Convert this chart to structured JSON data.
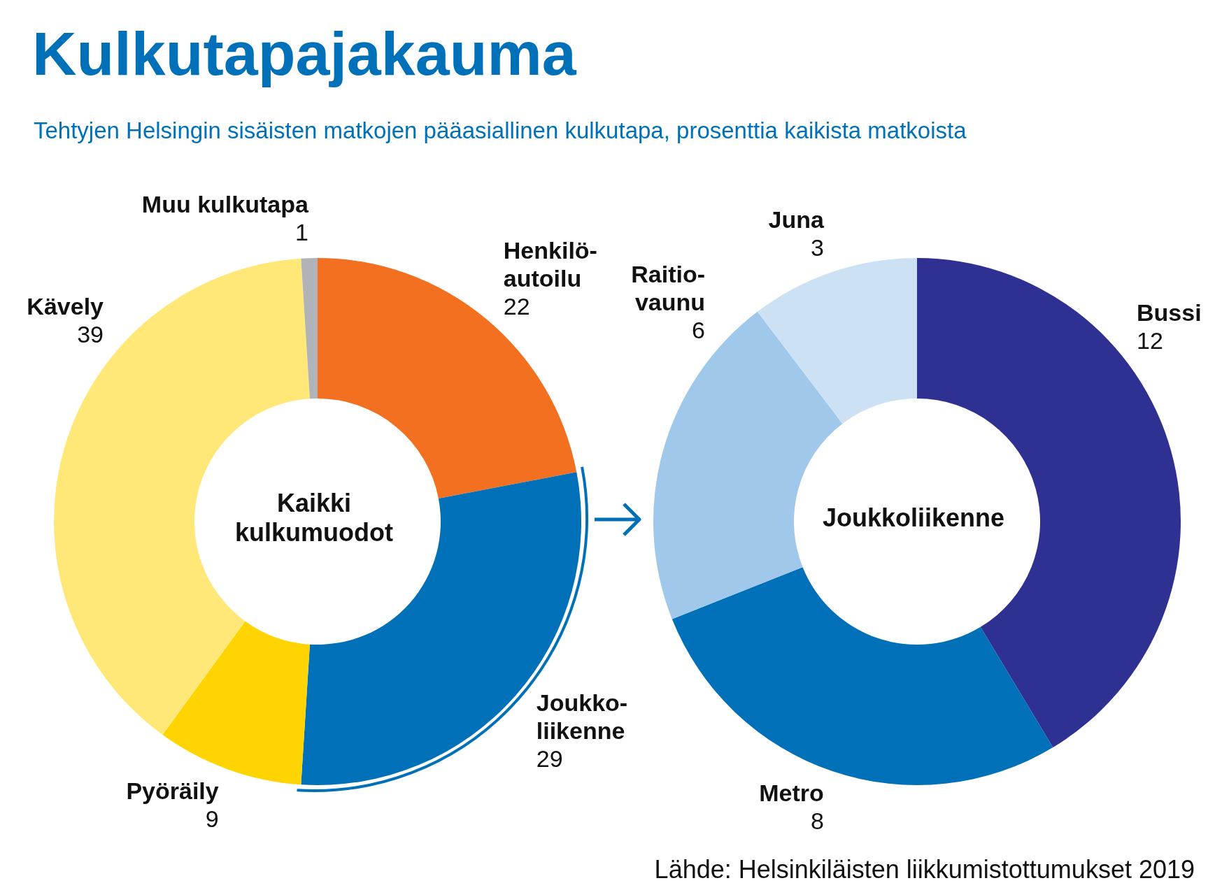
{
  "chart_data": [
    {
      "type": "donut",
      "title": "Kulkutapajakauma",
      "subtitle": "Tehtyjen Helsingin sisäisten matkojen pääasiallinen kulkutapa, prosenttia kaikista matkoista",
      "categories": [
        "Henkilö-\nautoilu",
        "Joukko-\nliikenne",
        "Pyöräily",
        "Kävely",
        "Muu kulkutapa"
      ],
      "values": [
        22,
        29,
        9,
        39,
        1
      ],
      "colors": [
        "#f37021",
        "#0070b8",
        "#ffd400",
        "#ffe878",
        "#b1b3b6"
      ],
      "data_labels": true,
      "annotations": [
        "Kaikki kulkumuodot"
      ]
    },
    {
      "type": "donut",
      "categories": [
        "Bussi",
        "Metro",
        "Raitio-\nvaunu",
        "Juna"
      ],
      "values": [
        12,
        8,
        6,
        3
      ],
      "colors": [
        "#2e3192",
        "#0070b8",
        "#9fc8ea",
        "#cde1f5"
      ],
      "data_labels": true,
      "annotations": [
        "Joukkoliikenne",
        "Lähde: Helsinkiläisten liikkumistottumukset 2019"
      ]
    }
  ]
}
